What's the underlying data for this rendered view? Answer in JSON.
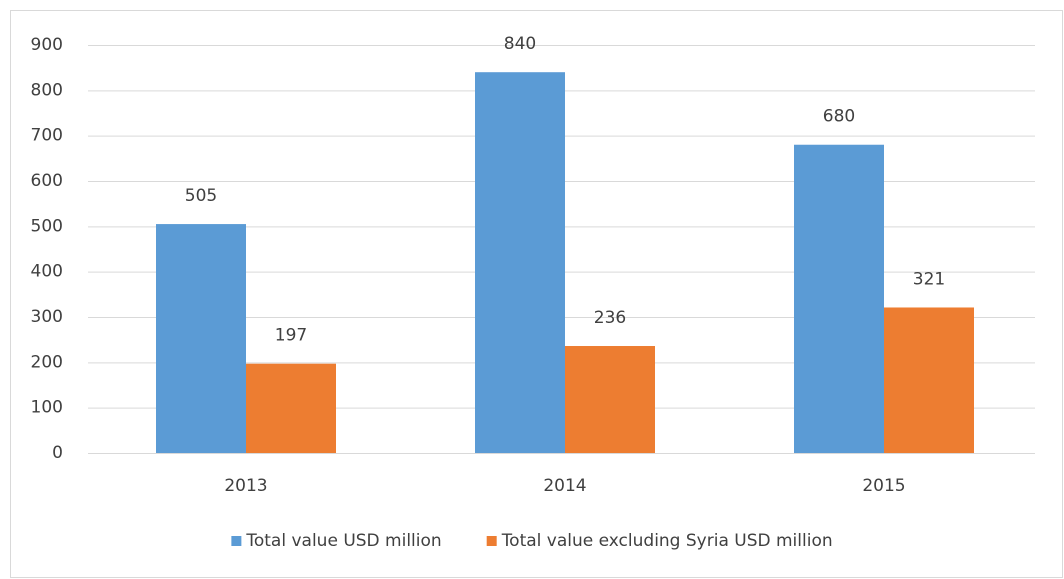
{
  "chart_data": {
    "type": "bar",
    "categories": [
      "2013",
      "2014",
      "2015"
    ],
    "series": [
      {
        "name": "Total value USD million",
        "color": "#5b9bd5",
        "values": [
          505,
          840,
          680
        ]
      },
      {
        "name": "Total value excluding Syria USD million",
        "color": "#ed7d31",
        "values": [
          197,
          236,
          321
        ]
      }
    ],
    "ylim": [
      0,
      900
    ],
    "yticks": [
      0,
      100,
      200,
      300,
      400,
      500,
      600,
      700,
      800,
      900
    ],
    "grid": true,
    "legend": "bottom"
  }
}
